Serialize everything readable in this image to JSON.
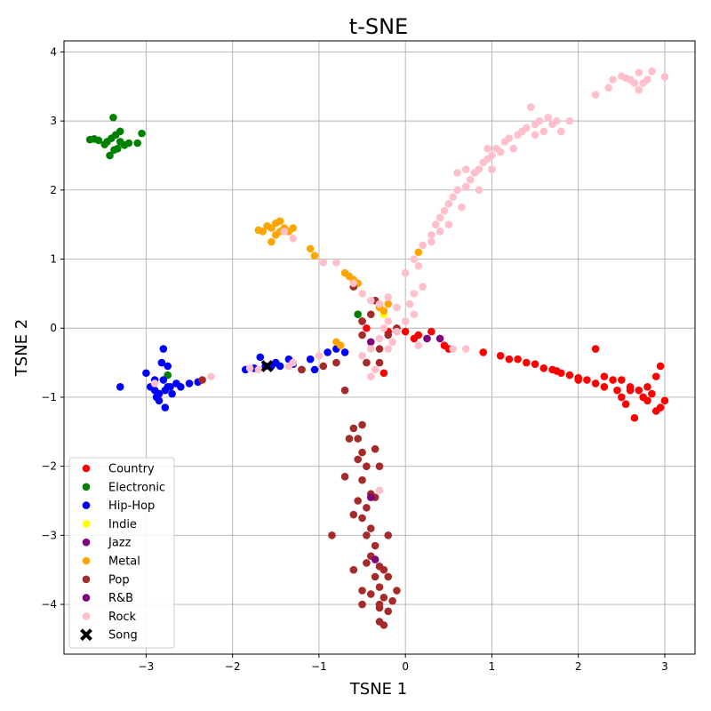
{
  "chart_data": {
    "type": "scatter",
    "title": "t-SNE",
    "xlabel": "TSNE 1",
    "ylabel": "TSNE 2",
    "xlim": [
      -3.95,
      3.35
    ],
    "ylim": [
      -4.72,
      4.16
    ],
    "xticks": [
      -3,
      -2,
      -1,
      0,
      1,
      2,
      3
    ],
    "yticks": [
      -4,
      -3,
      -2,
      -1,
      0,
      1,
      2,
      3,
      4
    ],
    "xtick_labels": [
      "−3",
      "−2",
      "−1",
      "0",
      "1",
      "2",
      "3"
    ],
    "ytick_labels": [
      "−4",
      "−3",
      "−2",
      "−1",
      "0",
      "1",
      "2",
      "3",
      "4"
    ],
    "grid": true,
    "legend_position": "lower-left",
    "series": [
      {
        "name": "Country",
        "color": "#ff0000",
        "marker": "circle",
        "points": [
          [
            0.0,
            -0.05
          ],
          [
            0.15,
            -0.1
          ],
          [
            0.3,
            -0.05
          ],
          [
            0.5,
            -0.3
          ],
          [
            0.9,
            -0.35
          ],
          [
            1.1,
            -0.4
          ],
          [
            1.2,
            -0.45
          ],
          [
            1.3,
            -0.45
          ],
          [
            1.4,
            -0.5
          ],
          [
            1.5,
            -0.52
          ],
          [
            1.6,
            -0.58
          ],
          [
            1.7,
            -0.6
          ],
          [
            1.8,
            -0.65
          ],
          [
            1.9,
            -0.68
          ],
          [
            2.0,
            -0.72
          ],
          [
            2.1,
            -0.75
          ],
          [
            2.2,
            -0.8
          ],
          [
            2.2,
            -0.3
          ],
          [
            2.3,
            -0.85
          ],
          [
            2.4,
            -0.75
          ],
          [
            2.45,
            -0.9
          ],
          [
            2.5,
            -1.0
          ],
          [
            2.5,
            -0.75
          ],
          [
            2.55,
            -1.1
          ],
          [
            2.6,
            -0.85
          ],
          [
            2.65,
            -1.3
          ],
          [
            2.7,
            -0.9
          ],
          [
            2.75,
            -1.0
          ],
          [
            2.8,
            -1.05
          ],
          [
            2.85,
            -0.95
          ],
          [
            2.9,
            -1.2
          ],
          [
            2.9,
            -0.7
          ],
          [
            2.95,
            -0.55
          ],
          [
            3.0,
            -1.05
          ],
          [
            2.95,
            -1.15
          ],
          [
            2.3,
            -0.7
          ],
          [
            2.0,
            -0.75
          ],
          [
            1.75,
            -0.62
          ],
          [
            0.1,
            -0.15
          ],
          [
            -0.2,
            -0.05
          ],
          [
            -0.45,
            0.0
          ],
          [
            -0.25,
            -0.65
          ],
          [
            0.45,
            -0.25
          ],
          [
            2.8,
            -0.85
          ],
          [
            2.6,
            -0.9
          ]
        ]
      },
      {
        "name": "Electronic",
        "color": "#008000",
        "marker": "circle",
        "points": [
          [
            -3.65,
            2.73
          ],
          [
            -3.55,
            2.72
          ],
          [
            -3.45,
            2.7
          ],
          [
            -3.4,
            2.75
          ],
          [
            -3.35,
            2.8
          ],
          [
            -3.3,
            2.7
          ],
          [
            -3.25,
            2.65
          ],
          [
            -3.38,
            3.05
          ],
          [
            -3.33,
            2.6
          ],
          [
            -3.42,
            2.5
          ],
          [
            -3.2,
            2.68
          ],
          [
            -3.05,
            2.82
          ],
          [
            -3.1,
            2.68
          ],
          [
            -3.48,
            2.66
          ],
          [
            -3.3,
            2.85
          ],
          [
            -3.37,
            2.58
          ],
          [
            -3.6,
            2.74
          ],
          [
            -0.55,
            0.2
          ],
          [
            -0.5,
            0.1
          ],
          [
            -2.75,
            -0.68
          ]
        ]
      },
      {
        "name": "Hip-Hop",
        "color": "#0000ff",
        "marker": "circle",
        "points": [
          [
            -3.3,
            -0.85
          ],
          [
            -3.0,
            -0.65
          ],
          [
            -2.95,
            -0.85
          ],
          [
            -2.9,
            -0.9
          ],
          [
            -2.85,
            -0.95
          ],
          [
            -2.85,
            -1.05
          ],
          [
            -2.8,
            -0.75
          ],
          [
            -2.78,
            -1.15
          ],
          [
            -2.82,
            -0.5
          ],
          [
            -2.8,
            -0.3
          ],
          [
            -2.75,
            -0.55
          ],
          [
            -2.75,
            -0.85
          ],
          [
            -2.7,
            -0.95
          ],
          [
            -2.65,
            -0.8
          ],
          [
            -2.6,
            -0.85
          ],
          [
            -2.5,
            -0.8
          ],
          [
            -2.4,
            -0.78
          ],
          [
            -2.9,
            -0.75
          ],
          [
            -2.78,
            -0.9
          ],
          [
            -1.85,
            -0.6
          ],
          [
            -1.75,
            -0.58
          ],
          [
            -1.68,
            -0.42
          ],
          [
            -1.55,
            -0.55
          ],
          [
            -1.5,
            -0.5
          ],
          [
            -1.45,
            -0.55
          ],
          [
            -1.35,
            -0.45
          ],
          [
            -1.3,
            -0.52
          ],
          [
            -1.2,
            -0.6
          ],
          [
            -1.1,
            -0.45
          ],
          [
            -1.05,
            -0.6
          ],
          [
            -0.9,
            -0.35
          ],
          [
            -0.8,
            -0.3
          ],
          [
            -0.7,
            -0.35
          ],
          [
            -2.88,
            -1.0
          ],
          [
            -2.72,
            -0.85
          ],
          [
            -1.62,
            -0.55
          ]
        ]
      },
      {
        "name": "Indie",
        "color": "#ffff00",
        "marker": "circle",
        "points": [
          [
            -0.3,
            0.3
          ],
          [
            -0.25,
            0.2
          ]
        ]
      },
      {
        "name": "Jazz",
        "color": "#800080",
        "marker": "circle",
        "points": [
          [
            0.25,
            -0.15
          ],
          [
            0.4,
            -0.15
          ],
          [
            -0.4,
            -0.2
          ]
        ]
      },
      {
        "name": "Metal",
        "color": "#ffa500",
        "marker": "circle",
        "points": [
          [
            -1.65,
            1.4
          ],
          [
            -1.6,
            1.48
          ],
          [
            -1.55,
            1.45
          ],
          [
            -1.5,
            1.52
          ],
          [
            -1.45,
            1.4
          ],
          [
            -1.4,
            1.45
          ],
          [
            -1.35,
            1.4
          ],
          [
            -1.3,
            1.45
          ],
          [
            -1.5,
            1.35
          ],
          [
            -1.55,
            1.25
          ],
          [
            -1.45,
            1.55
          ],
          [
            -1.1,
            1.15
          ],
          [
            -1.05,
            1.05
          ],
          [
            -0.7,
            0.8
          ],
          [
            -0.65,
            0.75
          ],
          [
            -0.6,
            0.7
          ],
          [
            -0.55,
            0.65
          ],
          [
            -0.3,
            0.3
          ],
          [
            -0.25,
            0.25
          ],
          [
            -0.8,
            -0.2
          ],
          [
            -0.75,
            -0.25
          ],
          [
            -0.2,
            0.35
          ],
          [
            0.15,
            1.1
          ],
          [
            -1.7,
            1.42
          ]
        ]
      },
      {
        "name": "Pop",
        "color": "#a52a2a",
        "marker": "circle",
        "points": [
          [
            -0.6,
            -1.45
          ],
          [
            -0.55,
            -1.6
          ],
          [
            -0.5,
            -1.8
          ],
          [
            -0.45,
            -2.0
          ],
          [
            -0.5,
            -2.2
          ],
          [
            -0.4,
            -2.4
          ],
          [
            -0.45,
            -2.6
          ],
          [
            -0.5,
            -2.75
          ],
          [
            -0.4,
            -2.9
          ],
          [
            -0.45,
            -3.0
          ],
          [
            -0.35,
            -3.15
          ],
          [
            -0.4,
            -3.3
          ],
          [
            -0.3,
            -3.45
          ],
          [
            -0.35,
            -3.6
          ],
          [
            -0.3,
            -3.75
          ],
          [
            -0.25,
            -3.9
          ],
          [
            -0.3,
            -4.0
          ],
          [
            -0.2,
            -4.1
          ],
          [
            -0.25,
            -4.3
          ],
          [
            -0.15,
            -3.95
          ],
          [
            -0.1,
            -3.8
          ],
          [
            -0.6,
            -3.5
          ],
          [
            -0.4,
            -3.85
          ],
          [
            -0.5,
            -4.0
          ],
          [
            -0.2,
            -3.6
          ],
          [
            -0.7,
            -2.15
          ],
          [
            -0.85,
            -3.0
          ],
          [
            -0.55,
            -2.5
          ],
          [
            -0.35,
            -1.75
          ],
          [
            -0.5,
            -1.4
          ],
          [
            -0.65,
            -1.6
          ],
          [
            -0.45,
            -3.4
          ],
          [
            -0.3,
            -2.0
          ],
          [
            -0.35,
            -2.45
          ],
          [
            -0.6,
            -2.7
          ],
          [
            -0.2,
            -3.0
          ],
          [
            -0.7,
            -0.9
          ],
          [
            -0.45,
            -0.5
          ],
          [
            -0.3,
            -0.3
          ],
          [
            -0.2,
            -0.1
          ],
          [
            -0.1,
            0.0
          ],
          [
            -0.5,
            0.1
          ],
          [
            -0.4,
            0.2
          ],
          [
            -0.6,
            0.6
          ],
          [
            -0.35,
            0.4
          ],
          [
            -0.5,
            -0.1
          ],
          [
            -0.3,
            -0.5
          ],
          [
            -1.2,
            -0.6
          ],
          [
            -0.95,
            -0.55
          ],
          [
            -0.8,
            -0.5
          ],
          [
            -2.35,
            -0.75
          ],
          [
            -0.25,
            -3.5
          ],
          [
            -0.3,
            -4.25
          ],
          [
            -0.5,
            -3.8
          ],
          [
            -0.3,
            -4.05
          ],
          [
            -0.55,
            -1.9
          ]
        ]
      },
      {
        "name": "R&B",
        "color": "#800080",
        "marker": "circle",
        "points": [
          [
            -0.4,
            -2.45
          ],
          [
            -0.35,
            -3.35
          ]
        ]
      },
      {
        "name": "Rock",
        "color": "#ffc0cb",
        "marker": "circle",
        "points": [
          [
            0.0,
            0.8
          ],
          [
            0.1,
            1.0
          ],
          [
            0.2,
            1.2
          ],
          [
            0.3,
            1.35
          ],
          [
            0.35,
            1.5
          ],
          [
            0.4,
            1.6
          ],
          [
            0.45,
            1.7
          ],
          [
            0.5,
            1.8
          ],
          [
            0.55,
            1.9
          ],
          [
            0.6,
            2.0
          ],
          [
            0.7,
            2.05
          ],
          [
            0.75,
            2.15
          ],
          [
            0.8,
            2.25
          ],
          [
            0.85,
            2.3
          ],
          [
            0.9,
            2.4
          ],
          [
            0.95,
            2.45
          ],
          [
            1.0,
            2.5
          ],
          [
            1.05,
            2.6
          ],
          [
            1.1,
            2.55
          ],
          [
            1.15,
            2.7
          ],
          [
            1.2,
            2.75
          ],
          [
            1.3,
            2.8
          ],
          [
            1.35,
            2.85
          ],
          [
            1.4,
            2.9
          ],
          [
            1.5,
            2.95
          ],
          [
            1.55,
            3.0
          ],
          [
            1.6,
            2.85
          ],
          [
            1.65,
            3.05
          ],
          [
            1.7,
            2.95
          ],
          [
            1.75,
            3.0
          ],
          [
            1.8,
            2.85
          ],
          [
            1.45,
            3.2
          ],
          [
            1.25,
            2.6
          ],
          [
            0.65,
            1.75
          ],
          [
            0.5,
            1.5
          ],
          [
            0.7,
            2.3
          ],
          [
            0.85,
            2.0
          ],
          [
            0.6,
            2.25
          ],
          [
            1.0,
            2.3
          ],
          [
            0.3,
            1.25
          ],
          [
            0.15,
            0.9
          ],
          [
            0.2,
            0.6
          ],
          [
            0.1,
            0.5
          ],
          [
            -0.1,
            0.3
          ],
          [
            -0.2,
            0.45
          ],
          [
            -0.3,
            0.35
          ],
          [
            -0.4,
            0.4
          ],
          [
            -0.5,
            0.5
          ],
          [
            -0.6,
            0.65
          ],
          [
            -0.8,
            0.95
          ],
          [
            -0.95,
            0.95
          ],
          [
            -0.2,
            0.1
          ],
          [
            -0.1,
            -0.05
          ],
          [
            -0.3,
            -0.15
          ],
          [
            -0.4,
            -0.3
          ],
          [
            -0.5,
            -0.4
          ],
          [
            -0.35,
            -0.6
          ],
          [
            -0.2,
            -0.3
          ],
          [
            0.1,
            0.2
          ],
          [
            0.15,
            -0.25
          ],
          [
            0.55,
            -0.3
          ],
          [
            0.7,
            -0.3
          ],
          [
            -2.25,
            -0.7
          ],
          [
            -2.9,
            -0.8
          ],
          [
            -1.35,
            -0.55
          ],
          [
            -1.3,
            -0.5
          ],
          [
            -1.8,
            -0.58
          ],
          [
            -1.7,
            -0.6
          ],
          [
            -1.0,
            -0.4
          ],
          [
            -0.3,
            -2.35
          ],
          [
            -0.4,
            -0.7
          ],
          [
            2.2,
            3.38
          ],
          [
            2.35,
            3.48
          ],
          [
            2.4,
            3.6
          ],
          [
            2.5,
            3.65
          ],
          [
            2.6,
            3.6
          ],
          [
            2.65,
            3.55
          ],
          [
            2.7,
            3.7
          ],
          [
            2.75,
            3.55
          ],
          [
            2.8,
            3.6
          ],
          [
            2.85,
            3.72
          ],
          [
            2.7,
            3.45
          ],
          [
            3.0,
            3.64
          ],
          [
            2.55,
            3.62
          ],
          [
            1.5,
            2.8
          ],
          [
            1.9,
            3.0
          ],
          [
            0.95,
            2.6
          ],
          [
            0.4,
            1.4
          ],
          [
            -1.4,
            1.4
          ],
          [
            -1.3,
            1.3
          ],
          [
            0.0,
            0.1
          ],
          [
            -0.15,
            -0.2
          ],
          [
            -0.25,
            0.0
          ],
          [
            0.05,
            0.35
          ]
        ]
      },
      {
        "name": "Song",
        "color": "#000000",
        "marker": "x",
        "points": [
          [
            -1.6,
            -0.55
          ]
        ]
      }
    ]
  }
}
